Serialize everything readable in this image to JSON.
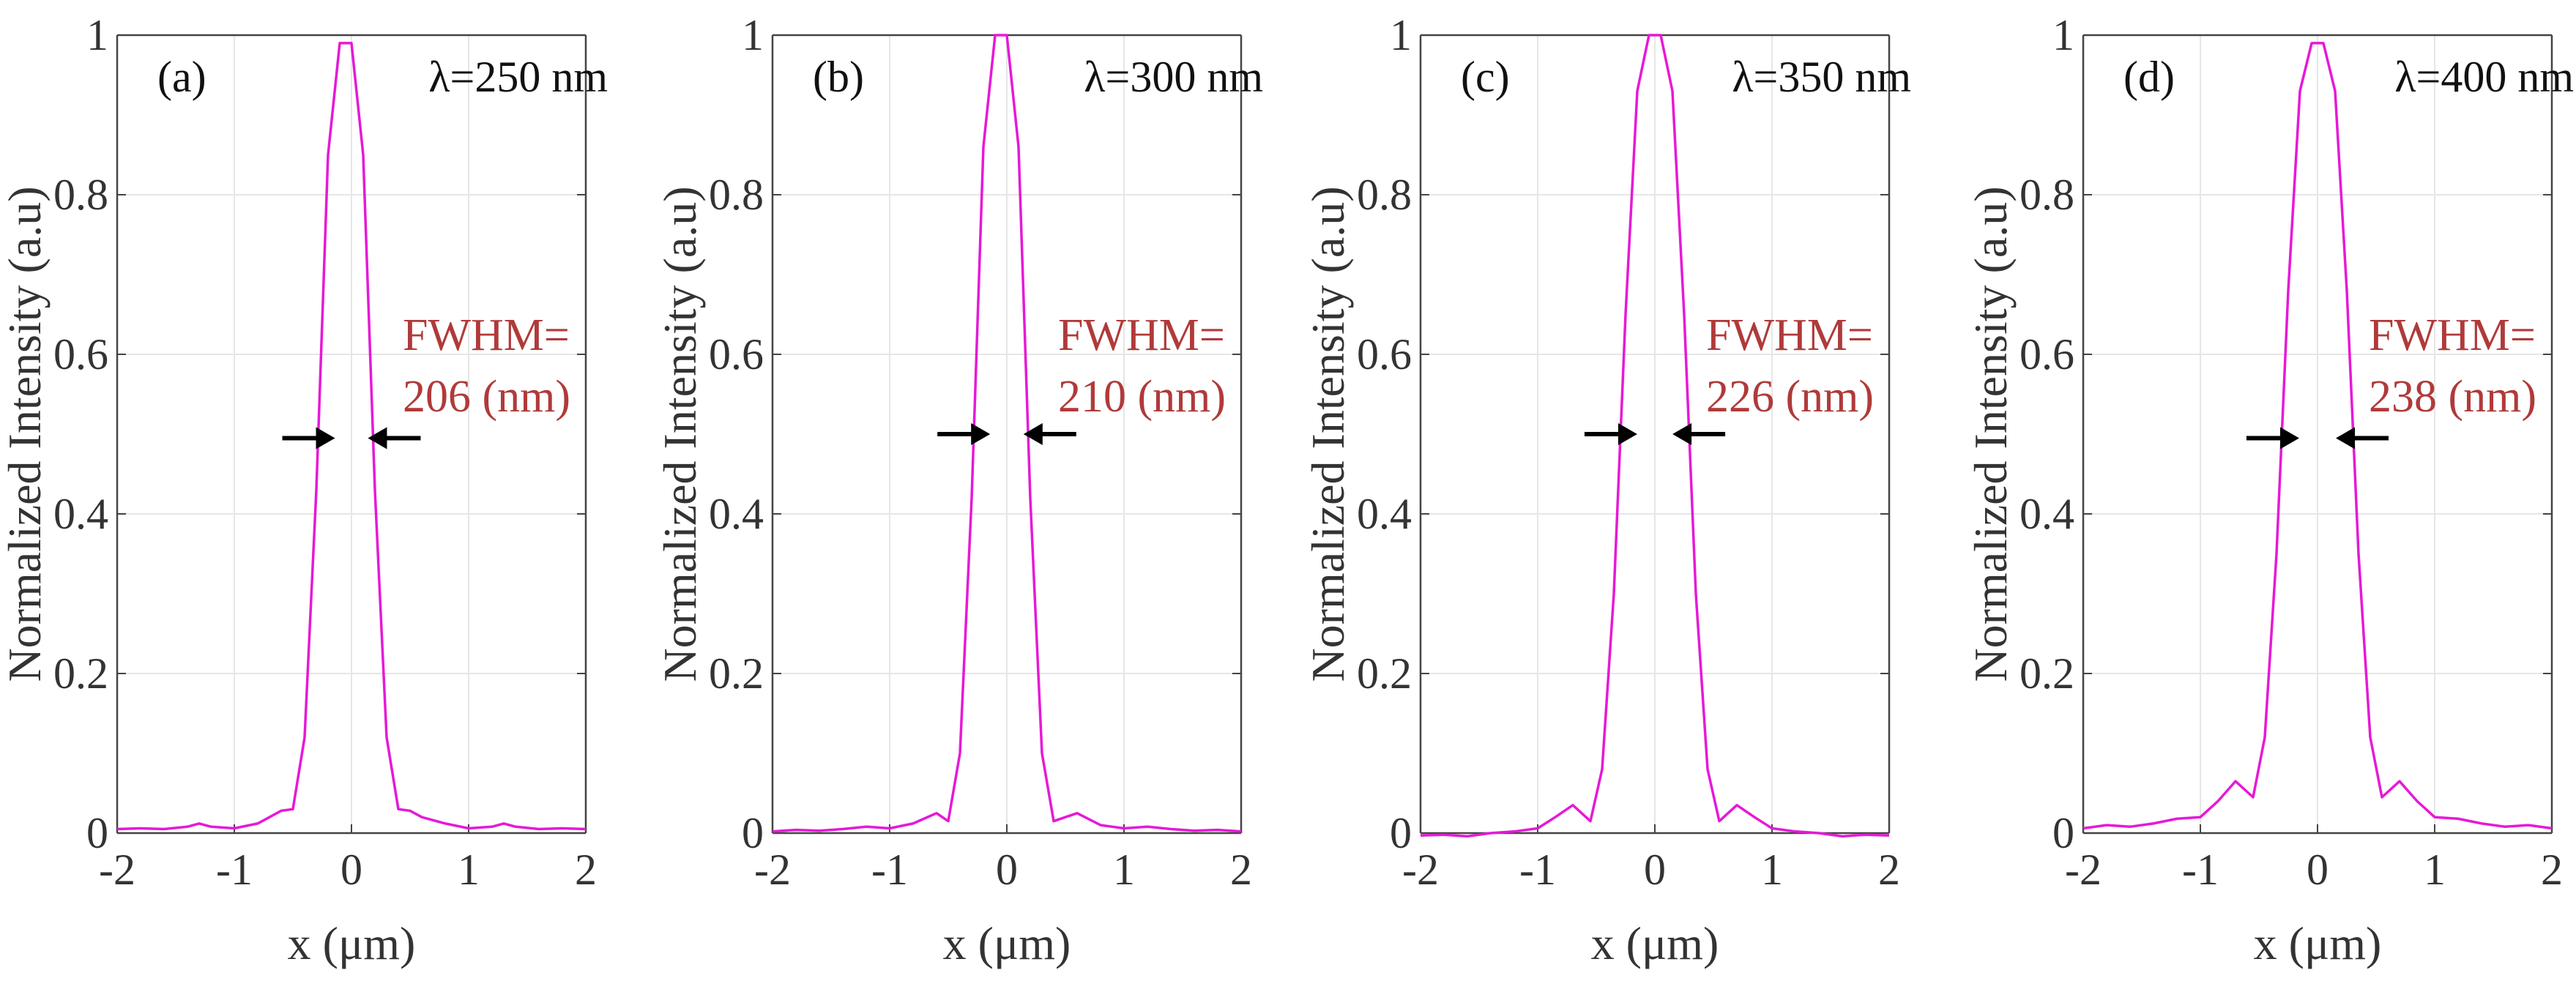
{
  "chart_data": [
    {
      "type": "line",
      "panel_label": "(a)",
      "wavelength_label": "λ=250 nm",
      "fwhm_line1": "FWHM=",
      "fwhm_line2": "206 (nm)",
      "fwhm_nm": 206,
      "xlabel": "x (μm)",
      "ylabel": "Normalized Intensity (a.u)",
      "xlim": [
        -2,
        2
      ],
      "ylim": [
        0,
        1
      ],
      "xticks": [
        "-2",
        "-1",
        "0",
        "1",
        "2"
      ],
      "yticks": [
        "0",
        "0.2",
        "0.4",
        "0.6",
        "0.8",
        "1"
      ],
      "grid": true,
      "color": "#e619d6",
      "peak": 0.99,
      "side_lobe": 0.03,
      "x": [
        -2,
        -1.8,
        -1.6,
        -1.4,
        -1.3,
        -1.2,
        -1.0,
        -0.8,
        -0.6,
        -0.5,
        -0.4,
        -0.3,
        -0.2,
        -0.1,
        0,
        0.1,
        0.2,
        0.3,
        0.4,
        0.5,
        0.6,
        0.8,
        1.0,
        1.2,
        1.3,
        1.4,
        1.6,
        1.8,
        2
      ],
      "y": [
        0.005,
        0.006,
        0.005,
        0.008,
        0.012,
        0.008,
        0.006,
        0.012,
        0.028,
        0.03,
        0.12,
        0.43,
        0.85,
        0.99,
        0.99,
        0.85,
        0.43,
        0.12,
        0.03,
        0.028,
        0.02,
        0.012,
        0.006,
        0.008,
        0.012,
        0.008,
        0.005,
        0.006,
        0.005
      ]
    },
    {
      "type": "line",
      "panel_label": "(b)",
      "wavelength_label": "λ=300 nm",
      "fwhm_line1": "FWHM=",
      "fwhm_line2": "210 (nm)",
      "fwhm_nm": 210,
      "xlabel": "x (μm)",
      "ylabel": "Normalized Intensity (a.u)",
      "xlim": [
        -2,
        2
      ],
      "ylim": [
        0,
        1
      ],
      "xticks": [
        "-2",
        "-1",
        "0",
        "1",
        "2"
      ],
      "yticks": [
        "0",
        "0.2",
        "0.4",
        "0.6",
        "0.8",
        "1"
      ],
      "grid": true,
      "color": "#e619d6",
      "peak": 1.0,
      "side_lobe": 0.025,
      "x": [
        -2,
        -1.8,
        -1.6,
        -1.4,
        -1.2,
        -1.0,
        -0.8,
        -0.6,
        -0.5,
        -0.4,
        -0.3,
        -0.2,
        -0.1,
        0,
        0.1,
        0.2,
        0.3,
        0.4,
        0.5,
        0.6,
        0.8,
        1.0,
        1.2,
        1.4,
        1.6,
        1.8,
        2
      ],
      "y": [
        0.002,
        0.004,
        0.003,
        0.005,
        0.008,
        0.006,
        0.012,
        0.025,
        0.015,
        0.1,
        0.42,
        0.86,
        1.0,
        1.0,
        0.86,
        0.42,
        0.1,
        0.015,
        0.02,
        0.025,
        0.01,
        0.006,
        0.008,
        0.005,
        0.003,
        0.004,
        0.002
      ]
    },
    {
      "type": "line",
      "panel_label": "(c)",
      "wavelength_label": "λ=350 nm",
      "fwhm_line1": "FWHM=",
      "fwhm_line2": "226 (nm)",
      "fwhm_nm": 226,
      "xlabel": "x (μm)",
      "ylabel": "Normalized Intensity (a.u)",
      "xlim": [
        -2,
        2
      ],
      "ylim": [
        0,
        1
      ],
      "xticks": [
        "-2",
        "-1",
        "0",
        "1",
        "2"
      ],
      "yticks": [
        "0",
        "0.2",
        "0.4",
        "0.6",
        "0.8",
        "1"
      ],
      "grid": true,
      "color": "#e619d6",
      "peak": 1.0,
      "side_lobe": 0.035,
      "x": [
        -2,
        -1.8,
        -1.6,
        -1.4,
        -1.2,
        -1.0,
        -0.85,
        -0.7,
        -0.55,
        -0.45,
        -0.35,
        -0.25,
        -0.15,
        -0.05,
        0,
        0.05,
        0.15,
        0.25,
        0.35,
        0.45,
        0.55,
        0.7,
        0.85,
        1.0,
        1.2,
        1.4,
        1.6,
        1.8,
        2
      ],
      "y": [
        -0.003,
        -0.002,
        -0.004,
        0.0,
        0.002,
        0.006,
        0.02,
        0.035,
        0.015,
        0.08,
        0.3,
        0.65,
        0.93,
        1.0,
        1.0,
        1.0,
        0.93,
        0.65,
        0.3,
        0.08,
        0.015,
        0.035,
        0.02,
        0.006,
        0.002,
        0.0,
        -0.004,
        -0.002,
        -0.003
      ]
    },
    {
      "type": "line",
      "panel_label": "(d)",
      "wavelength_label": "λ=400 nm",
      "fwhm_line1": "FWHM=",
      "fwhm_line2": "238 (nm)",
      "fwhm_nm": 238,
      "xlabel": "x (μm)",
      "ylabel": "Normalized Intensity (a.u)",
      "xlim": [
        -2,
        2
      ],
      "ylim": [
        0,
        1
      ],
      "xticks": [
        "-2",
        "-1",
        "0",
        "1",
        "2"
      ],
      "yticks": [
        "0",
        "0.2",
        "0.4",
        "0.6",
        "0.8",
        "1"
      ],
      "grid": true,
      "color": "#e619d6",
      "peak": 0.99,
      "side_lobe": 0.065,
      "x": [
        -2,
        -1.8,
        -1.6,
        -1.4,
        -1.2,
        -1.0,
        -0.85,
        -0.7,
        -0.55,
        -0.45,
        -0.35,
        -0.25,
        -0.15,
        -0.05,
        0,
        0.05,
        0.15,
        0.25,
        0.35,
        0.45,
        0.55,
        0.7,
        0.85,
        1.0,
        1.2,
        1.4,
        1.6,
        1.8,
        2
      ],
      "y": [
        0.006,
        0.01,
        0.008,
        0.012,
        0.018,
        0.02,
        0.04,
        0.065,
        0.045,
        0.12,
        0.35,
        0.68,
        0.93,
        0.99,
        0.99,
        0.99,
        0.93,
        0.68,
        0.35,
        0.12,
        0.045,
        0.065,
        0.04,
        0.02,
        0.018,
        0.012,
        0.008,
        0.01,
        0.006
      ]
    }
  ]
}
